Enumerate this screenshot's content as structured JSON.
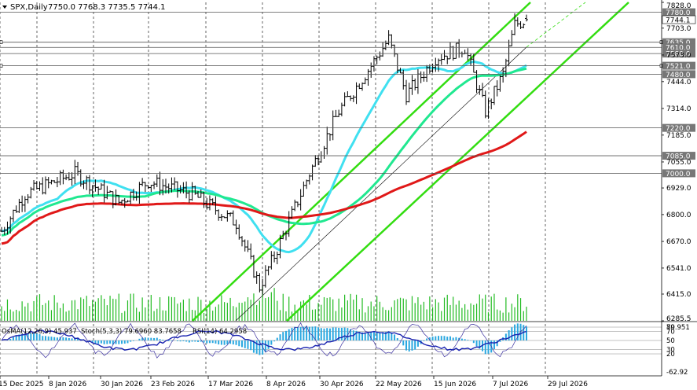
{
  "header": {
    "symbol": "SPX,Daily",
    "ohlc": "7750.0 7768.3 7735.5 7744.1"
  },
  "chart_data": {
    "type": "candlestick",
    "price_ticks": [
      "7828.0",
      "7703.0",
      "7573.0",
      "7444.0",
      "7314.0",
      "7185.0",
      "7055.0",
      "6929.0",
      "6800.0",
      "6670.0",
      "6541.0",
      "6415.0",
      "6285.5"
    ],
    "date_ticks": [
      "15 Dec 2025",
      "8 Jan 2026",
      "30 Jan 2026",
      "23 Feb 2026",
      "17 Mar 2026",
      "8 Apr 2026",
      "30 Apr 2026",
      "22 May 2026",
      "15 Jun 2026",
      "7 Jul 2026",
      "29 Jul 2026"
    ],
    "last_price": "7744.1",
    "levels": [
      {
        "value": 7780.0,
        "label": "7780.0"
      },
      {
        "value": 7635.0,
        "label": "7635.0"
      },
      {
        "value": 7610.0,
        "label": "7610.0"
      },
      {
        "value": 7580.0,
        "label": "7580.0"
      },
      {
        "value": 7521.0,
        "label": "7521.0"
      },
      {
        "value": 7480.0,
        "label": "7480.0"
      },
      {
        "value": 7220.0,
        "label": "7220.0"
      },
      {
        "value": 7085.0,
        "label": "7085.0"
      },
      {
        "value": 7000.0,
        "label": "7000.0"
      }
    ],
    "moving_averages": [
      {
        "color": "#40e0f0"
      },
      {
        "color": "#20e890"
      },
      {
        "color": "#e01818"
      }
    ],
    "trend_channel_color": "#33dd11",
    "oscillator": {
      "osma_label": "OsMA(12,26,9) 45.937",
      "stoch_label": "Stoch(5,3,3) 79.6960 83.7658",
      "rsi_label": "RSI(14) 64.2958",
      "ticks": [
        "79.951",
        "80",
        "70",
        "50",
        "30",
        "20",
        "-62.92"
      ]
    }
  }
}
